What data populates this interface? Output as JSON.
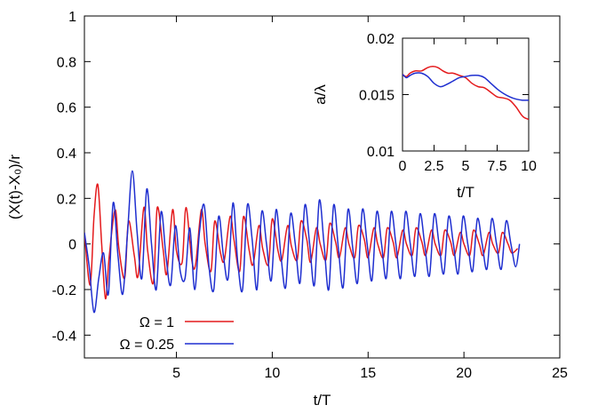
{
  "chart_data": [
    {
      "type": "line",
      "xlabel": "t/T",
      "ylabel": "(X(t)-X₀)/r",
      "xlim": [
        0.2,
        25
      ],
      "ylim": [
        -0.5,
        1.0
      ],
      "xticks": [
        5,
        10,
        15,
        20,
        25
      ],
      "yticks": [
        -0.4,
        -0.2,
        0,
        0.2,
        0.4,
        0.6,
        0.8,
        1
      ],
      "ytick_labels": [
        "-0.4",
        "-0.2",
        "0",
        "0.2",
        "0.4",
        "0.6",
        "0.8",
        "1"
      ],
      "legend_position": "bottom-left",
      "grid": false,
      "series": [
        {
          "name": "Ω = 1",
          "color": "#e41a1c",
          "x": [
            0.2,
            0.5,
            0.7,
            0.9,
            1.1,
            1.3,
            1.5,
            1.8,
            2.0,
            2.3,
            2.5,
            2.8,
            3.0,
            3.3,
            3.5,
            3.8,
            4.0,
            4.3,
            4.5,
            4.8,
            5.0,
            5.3,
            5.5,
            5.8,
            6.0,
            6.3,
            6.5,
            6.8,
            7.0,
            7.3,
            7.5,
            7.8,
            8.0,
            8.3,
            8.5,
            8.8,
            9.0,
            9.3,
            9.5,
            9.8,
            10.0,
            10.3,
            10.5,
            10.8,
            11.0,
            11.3,
            11.5,
            11.8,
            12.0,
            12.3,
            12.5,
            12.8,
            13.0,
            13.3,
            13.5,
            13.8,
            14.0,
            14.3,
            14.5,
            14.8,
            15.0,
            15.3,
            15.5,
            15.8,
            16.0,
            16.3,
            16.5,
            16.8,
            17.0,
            17.3,
            17.5,
            17.8,
            18.0,
            18.3,
            18.5,
            18.8,
            19.0,
            19.3,
            19.5,
            19.8,
            20.0,
            20.3,
            20.5,
            20.8,
            21.0,
            21.3,
            21.5,
            21.8,
            22.0,
            22.3,
            22.5,
            22.8
          ],
          "y": [
            0.05,
            -0.18,
            0.12,
            0.26,
            0.0,
            -0.24,
            -0.05,
            0.15,
            -0.02,
            -0.15,
            0.1,
            -0.05,
            -0.14,
            0.16,
            -0.03,
            -0.17,
            0.16,
            -0.02,
            -0.13,
            0.15,
            -0.03,
            -0.08,
            0.16,
            -0.07,
            -0.09,
            0.15,
            0.0,
            -0.12,
            0.1,
            -0.04,
            -0.07,
            0.12,
            0.02,
            -0.12,
            0.12,
            -0.03,
            -0.09,
            0.08,
            -0.02,
            -0.09,
            0.11,
            -0.03,
            -0.07,
            0.08,
            -0.01,
            -0.07,
            0.1,
            0.02,
            -0.08,
            0.07,
            0.0,
            -0.07,
            0.09,
            0.01,
            -0.06,
            0.07,
            0.0,
            -0.06,
            0.08,
            0.02,
            -0.06,
            0.07,
            0.0,
            -0.06,
            0.07,
            0.01,
            -0.06,
            0.06,
            0.0,
            -0.05,
            0.07,
            0.01,
            -0.05,
            0.06,
            0.0,
            -0.05,
            0.06,
            0.01,
            -0.05,
            0.05,
            0.0,
            -0.05,
            0.06,
            0.0,
            -0.05,
            0.05,
            0.0,
            -0.04,
            0.05,
            0.0,
            -0.04,
            -0.02
          ]
        },
        {
          "name": "Ω = 0.25",
          "color": "#1f2fd0",
          "x": [
            0.2,
            0.45,
            0.7,
            0.95,
            1.2,
            1.45,
            1.7,
            1.95,
            2.2,
            2.45,
            2.7,
            2.95,
            3.2,
            3.45,
            3.7,
            3.95,
            4.2,
            4.45,
            4.7,
            4.95,
            5.2,
            5.45,
            5.7,
            5.95,
            6.2,
            6.45,
            6.7,
            6.95,
            7.2,
            7.45,
            7.7,
            7.95,
            8.2,
            8.45,
            8.7,
            8.95,
            9.2,
            9.45,
            9.7,
            9.95,
            10.2,
            10.45,
            10.7,
            10.95,
            11.2,
            11.45,
            11.7,
            11.95,
            12.2,
            12.45,
            12.7,
            12.95,
            13.2,
            13.45,
            13.7,
            13.95,
            14.2,
            14.45,
            14.7,
            14.95,
            15.2,
            15.45,
            15.7,
            15.95,
            16.2,
            16.45,
            16.7,
            16.95,
            17.2,
            17.45,
            17.7,
            17.95,
            18.2,
            18.45,
            18.7,
            18.95,
            19.2,
            19.45,
            19.7,
            19.95,
            20.2,
            20.45,
            20.7,
            20.95,
            21.2,
            21.45,
            21.7,
            21.95,
            22.2,
            22.45,
            22.7,
            22.9
          ],
          "y": [
            0.05,
            -0.1,
            -0.3,
            -0.15,
            -0.04,
            -0.22,
            0.18,
            -0.05,
            -0.22,
            0.05,
            0.32,
            0.05,
            -0.15,
            0.24,
            0.0,
            -0.2,
            0.14,
            -0.05,
            -0.18,
            0.08,
            -0.12,
            -0.15,
            0.07,
            -0.2,
            0.05,
            0.17,
            -0.1,
            -0.2,
            0.12,
            -0.05,
            -0.15,
            0.18,
            -0.08,
            -0.2,
            0.17,
            0.02,
            -0.2,
            0.14,
            0.0,
            -0.16,
            0.15,
            -0.05,
            -0.19,
            0.13,
            0.0,
            -0.17,
            0.17,
            0.0,
            -0.18,
            0.19,
            0.0,
            -0.2,
            0.17,
            -0.02,
            -0.19,
            0.15,
            -0.02,
            -0.17,
            0.15,
            0.0,
            -0.16,
            0.14,
            0.0,
            -0.15,
            0.14,
            0.0,
            -0.15,
            0.14,
            0.0,
            -0.14,
            0.13,
            0.0,
            -0.14,
            0.13,
            0.0,
            -0.13,
            0.12,
            0.0,
            -0.13,
            0.12,
            0.0,
            -0.12,
            0.11,
            0.0,
            -0.11,
            0.11,
            0.0,
            -0.11,
            0.1,
            0.0,
            -0.1,
            0.0
          ]
        }
      ]
    },
    {
      "type": "line",
      "xlabel": "t/T",
      "ylabel": "a/λ",
      "xlim": [
        0,
        10
      ],
      "ylim": [
        0.01,
        0.02
      ],
      "xticks": [
        0,
        2.5,
        5,
        7.5,
        10
      ],
      "xtick_labels": [
        "0",
        "2.5",
        "5",
        "7.5",
        "10"
      ],
      "yticks": [
        0.01,
        0.015,
        0.02
      ],
      "ytick_labels": [
        "0.01",
        "0.015",
        "0.02"
      ],
      "grid": false,
      "series": [
        {
          "color": "#e41a1c",
          "x": [
            0,
            0.3,
            0.6,
            1.0,
            1.5,
            2.0,
            2.4,
            2.8,
            3.2,
            3.6,
            4.0,
            4.5,
            5.0,
            5.5,
            6.0,
            6.5,
            7.0,
            7.5,
            8.0,
            8.5,
            9.0,
            9.3,
            9.6,
            10.0
          ],
          "y": [
            0.0168,
            0.0166,
            0.0169,
            0.0171,
            0.0171,
            0.0174,
            0.0175,
            0.0174,
            0.0171,
            0.0169,
            0.0169,
            0.0167,
            0.0165,
            0.016,
            0.0157,
            0.0156,
            0.0152,
            0.0148,
            0.0147,
            0.0145,
            0.0139,
            0.0134,
            0.013,
            0.0128
          ]
        },
        {
          "color": "#1f2fd0",
          "x": [
            0,
            0.3,
            0.6,
            1.0,
            1.5,
            2.0,
            2.5,
            3.0,
            3.5,
            4.0,
            4.5,
            5.0,
            5.5,
            6.0,
            6.5,
            7.0,
            7.5,
            8.0,
            8.5,
            9.0,
            9.5,
            10.0
          ],
          "y": [
            0.0168,
            0.0165,
            0.0167,
            0.0169,
            0.0169,
            0.0166,
            0.016,
            0.0157,
            0.0159,
            0.0162,
            0.0165,
            0.0166,
            0.0167,
            0.0167,
            0.0165,
            0.016,
            0.0155,
            0.0151,
            0.0148,
            0.0146,
            0.0145,
            0.0145
          ]
        }
      ]
    }
  ]
}
